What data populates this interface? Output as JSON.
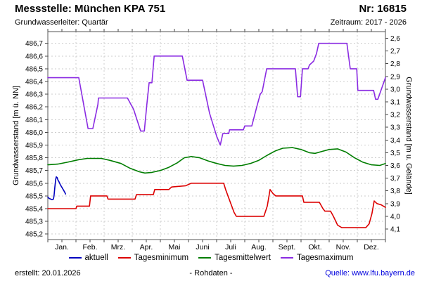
{
  "header": {
    "title": "Messstelle: München KPA 751",
    "number": "Nr: 16815",
    "aquifer": "Grundwasserleiter: Quartär",
    "period": "Zeitraum: 2017 - 2026"
  },
  "legend": {
    "items": [
      {
        "label": "aktuell",
        "color": "#0000bf"
      },
      {
        "label": "Tagesminimum",
        "color": "#dc0000"
      },
      {
        "label": "Tagesmittelwert",
        "color": "#007d00"
      },
      {
        "label": "Tagesmaximum",
        "color": "#8a2be2"
      }
    ]
  },
  "footer": {
    "created": "erstellt:  20.01.2026",
    "center": "- Rohdaten -",
    "source": "Quelle: www.lfu.bayern.de"
  },
  "chart_data": {
    "type": "line",
    "title": "Messstelle: München KPA 751",
    "x_axis": {
      "month_labels": [
        "Jan.",
        "Feb.",
        "Mrz.",
        "Apr.",
        "Mai",
        "Juni",
        "Juli",
        "Aug.",
        "Sept.",
        "Okt.",
        "Nov.",
        "Dez."
      ]
    },
    "y_left": {
      "label": "Grundwasserstand [m ü. NN]",
      "tick_labels": [
        "486,7",
        "486,6",
        "486,5",
        "486,4",
        "486,3",
        "486,2",
        "486,1",
        "486,0",
        "485,9",
        "485,8",
        "485,7",
        "485,6",
        "485,5",
        "485,4",
        "485,3",
        "485,2"
      ],
      "min": 485.2,
      "max": 486.7,
      "step": 0.1
    },
    "y_right": {
      "label": "Grundwasserstand [m u. Gelände]",
      "tick_labels": [
        "2,6",
        "2,7",
        "2,8",
        "2,9",
        "3,0",
        "3,1",
        "3,2",
        "3,3",
        "3,4",
        "3,5",
        "3,6",
        "3,7",
        "3,8",
        "3,9",
        "4,0",
        "4,1"
      ],
      "min": 2.6,
      "max": 4.1,
      "step": 0.1,
      "ground_elevation_m": 489.34
    },
    "grid": true,
    "legend_position": "bottom",
    "series": [
      {
        "name": "aktuell",
        "color": "#0000bf",
        "points": [
          [
            0,
            485.49
          ],
          [
            0.05,
            485.48
          ],
          [
            0.1,
            485.475
          ],
          [
            0.15,
            485.47
          ],
          [
            0.2,
            485.475
          ],
          [
            0.22,
            485.5
          ],
          [
            0.25,
            485.57
          ],
          [
            0.28,
            485.63
          ],
          [
            0.3,
            485.65
          ],
          [
            0.33,
            485.645
          ],
          [
            0.36,
            485.625
          ],
          [
            0.4,
            485.61
          ],
          [
            0.44,
            485.59
          ],
          [
            0.48,
            485.575
          ],
          [
            0.52,
            485.56
          ],
          [
            0.56,
            485.545
          ],
          [
            0.6,
            485.53
          ],
          [
            0.63,
            485.515
          ]
        ]
      },
      {
        "name": "Tagesminimum",
        "color": "#dc0000",
        "points": [
          [
            0,
            485.4
          ],
          [
            1.0,
            485.4
          ],
          [
            1.03,
            485.42
          ],
          [
            1.48,
            485.42
          ],
          [
            1.52,
            485.5
          ],
          [
            2.1,
            485.5
          ],
          [
            2.14,
            485.475
          ],
          [
            3.1,
            485.475
          ],
          [
            3.15,
            485.51
          ],
          [
            3.75,
            485.51
          ],
          [
            3.8,
            485.55
          ],
          [
            4.3,
            485.55
          ],
          [
            4.4,
            485.57
          ],
          [
            4.9,
            485.58
          ],
          [
            5.1,
            485.6
          ],
          [
            6.25,
            485.6
          ],
          [
            6.32,
            485.55
          ],
          [
            6.62,
            485.37
          ],
          [
            6.7,
            485.34
          ],
          [
            7.68,
            485.34
          ],
          [
            7.8,
            485.42
          ],
          [
            7.9,
            485.55
          ],
          [
            8.0,
            485.52
          ],
          [
            8.1,
            485.5
          ],
          [
            9.05,
            485.5
          ],
          [
            9.1,
            485.45
          ],
          [
            9.65,
            485.45
          ],
          [
            9.78,
            485.4
          ],
          [
            9.85,
            485.38
          ],
          [
            10.05,
            485.38
          ],
          [
            10.15,
            485.34
          ],
          [
            10.3,
            485.27
          ],
          [
            10.45,
            485.25
          ],
          [
            11.3,
            485.25
          ],
          [
            11.42,
            485.28
          ],
          [
            11.52,
            485.36
          ],
          [
            11.6,
            485.46
          ],
          [
            11.7,
            485.44
          ],
          [
            11.85,
            485.43
          ],
          [
            12,
            485.41
          ]
        ]
      },
      {
        "name": "Tagesmittelwert",
        "color": "#007d00",
        "points": [
          [
            0,
            485.745
          ],
          [
            0.35,
            485.75
          ],
          [
            0.7,
            485.765
          ],
          [
            1.1,
            485.785
          ],
          [
            1.4,
            485.795
          ],
          [
            1.9,
            485.795
          ],
          [
            2.2,
            485.78
          ],
          [
            2.6,
            485.755
          ],
          [
            2.9,
            485.72
          ],
          [
            3.25,
            485.69
          ],
          [
            3.45,
            485.68
          ],
          [
            3.7,
            485.685
          ],
          [
            4.0,
            485.7
          ],
          [
            4.3,
            485.725
          ],
          [
            4.6,
            485.76
          ],
          [
            4.85,
            485.8
          ],
          [
            5.1,
            485.81
          ],
          [
            5.4,
            485.8
          ],
          [
            5.7,
            485.775
          ],
          [
            6.0,
            485.755
          ],
          [
            6.3,
            485.74
          ],
          [
            6.6,
            485.735
          ],
          [
            6.9,
            485.74
          ],
          [
            7.2,
            485.755
          ],
          [
            7.5,
            485.78
          ],
          [
            7.8,
            485.82
          ],
          [
            8.1,
            485.855
          ],
          [
            8.35,
            485.875
          ],
          [
            8.7,
            485.88
          ],
          [
            9.0,
            485.865
          ],
          [
            9.3,
            485.84
          ],
          [
            9.5,
            485.835
          ],
          [
            9.75,
            485.85
          ],
          [
            10.0,
            485.865
          ],
          [
            10.3,
            485.87
          ],
          [
            10.6,
            485.845
          ],
          [
            10.9,
            485.8
          ],
          [
            11.2,
            485.765
          ],
          [
            11.5,
            485.745
          ],
          [
            11.8,
            485.74
          ],
          [
            12,
            485.755
          ]
        ]
      },
      {
        "name": "Tagesmaximum",
        "color": "#8a2be2",
        "points": [
          [
            0,
            486.43
          ],
          [
            1.1,
            486.43
          ],
          [
            1.43,
            486.03
          ],
          [
            1.6,
            486.03
          ],
          [
            1.78,
            486.22
          ],
          [
            1.8,
            486.27
          ],
          [
            2.83,
            486.27
          ],
          [
            3.05,
            486.18
          ],
          [
            3.3,
            486.01
          ],
          [
            3.43,
            486.01
          ],
          [
            3.52,
            486.22
          ],
          [
            3.6,
            486.39
          ],
          [
            3.7,
            486.39
          ],
          [
            3.78,
            486.6
          ],
          [
            4.78,
            486.6
          ],
          [
            4.95,
            486.41
          ],
          [
            5.5,
            486.41
          ],
          [
            5.75,
            486.15
          ],
          [
            6.0,
            485.97
          ],
          [
            6.13,
            485.9
          ],
          [
            6.22,
            485.99
          ],
          [
            6.43,
            485.99
          ],
          [
            6.46,
            486.02
          ],
          [
            6.95,
            486.02
          ],
          [
            7.0,
            486.05
          ],
          [
            7.25,
            486.05
          ],
          [
            7.45,
            486.22
          ],
          [
            7.55,
            486.3
          ],
          [
            7.62,
            486.32
          ],
          [
            7.78,
            486.5
          ],
          [
            8.8,
            486.5
          ],
          [
            8.88,
            486.28
          ],
          [
            8.98,
            486.28
          ],
          [
            9.05,
            486.5
          ],
          [
            9.25,
            486.5
          ],
          [
            9.3,
            486.53
          ],
          [
            9.45,
            486.56
          ],
          [
            9.55,
            486.62
          ],
          [
            9.63,
            486.7
          ],
          [
            10.63,
            486.7
          ],
          [
            10.75,
            486.5
          ],
          [
            10.98,
            486.5
          ],
          [
            11.02,
            486.33
          ],
          [
            11.58,
            486.33
          ],
          [
            11.65,
            486.26
          ],
          [
            11.73,
            486.26
          ],
          [
            12,
            486.43
          ]
        ]
      }
    ]
  }
}
